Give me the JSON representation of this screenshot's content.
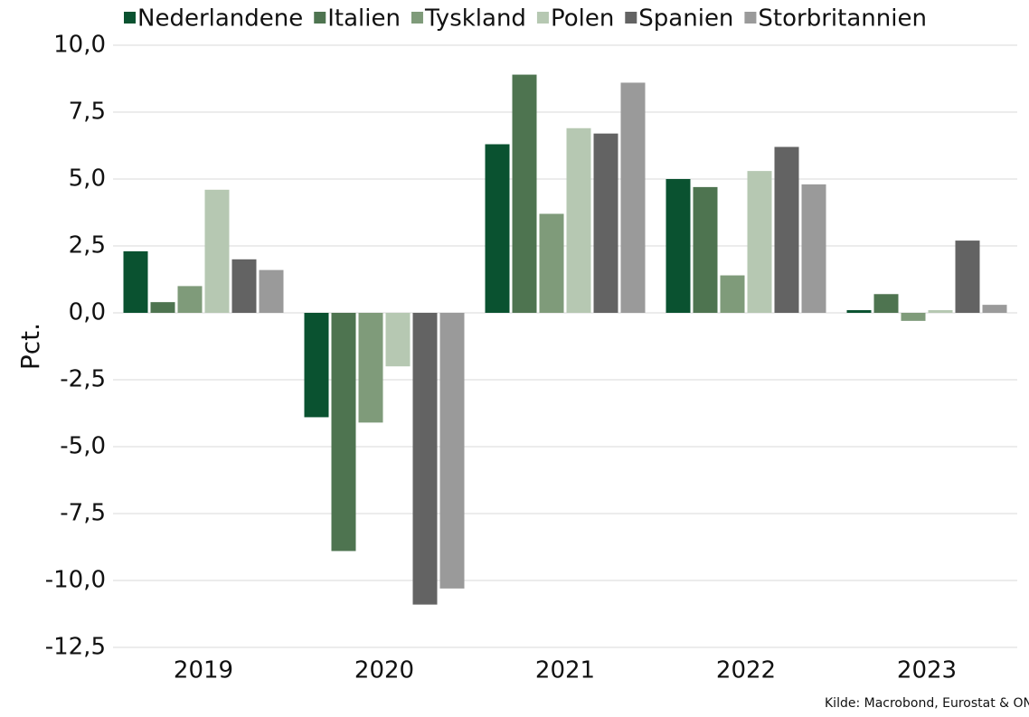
{
  "chart_data": {
    "type": "bar",
    "categories": [
      "2019",
      "2020",
      "2021",
      "2022",
      "2023"
    ],
    "series": [
      {
        "name": "Nederlandene",
        "color": "#0a5230",
        "values": [
          2.3,
          -3.9,
          6.3,
          5.0,
          0.1
        ]
      },
      {
        "name": "Italien",
        "color": "#4e7450",
        "values": [
          0.4,
          -8.9,
          8.9,
          4.7,
          0.7
        ]
      },
      {
        "name": "Tyskland",
        "color": "#7f9b7a",
        "values": [
          1.0,
          -4.1,
          3.7,
          1.4,
          -0.3
        ]
      },
      {
        "name": "Polen",
        "color": "#b6c8b2",
        "values": [
          4.6,
          -2.0,
          6.9,
          5.3,
          0.1
        ]
      },
      {
        "name": "Spanien",
        "color": "#636363",
        "values": [
          2.0,
          -10.9,
          6.7,
          6.2,
          2.7
        ]
      },
      {
        "name": "Storbritannien",
        "color": "#9a9a9a",
        "values": [
          1.6,
          -10.3,
          8.6,
          4.8,
          0.3
        ]
      }
    ],
    "y_label": "Pct.",
    "source": "Kilde: Macrobond, Eurostat & ONS",
    "ylim": [
      -12.5,
      10
    ],
    "yticks": [
      {
        "value": -12.5,
        "label": "-12,5"
      },
      {
        "value": -10,
        "label": "-10,0"
      },
      {
        "value": -7.5,
        "label": "-7,5"
      },
      {
        "value": -5,
        "label": "-5,0"
      },
      {
        "value": -2.5,
        "label": "-2,5"
      },
      {
        "value": 0,
        "label": "0,0"
      },
      {
        "value": 2.5,
        "label": "2,5"
      },
      {
        "value": 5,
        "label": "5,0"
      },
      {
        "value": 7.5,
        "label": "7,5"
      },
      {
        "value": 10,
        "label": "10,0"
      }
    ],
    "grid": true,
    "legend": "top"
  }
}
